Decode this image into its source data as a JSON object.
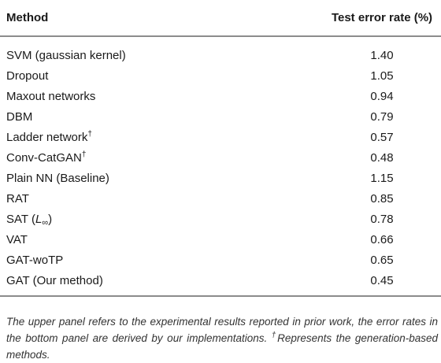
{
  "table": {
    "headers": {
      "method": "Method",
      "error": "Test error rate (%)"
    },
    "rows": [
      {
        "method": "SVM (gaussian kernel)",
        "dagger": "",
        "error": "1.40"
      },
      {
        "method": "Dropout",
        "dagger": "",
        "error": "1.05"
      },
      {
        "method": "Maxout networks",
        "dagger": "",
        "error": "0.94"
      },
      {
        "method": "DBM",
        "dagger": "",
        "error": "0.79"
      },
      {
        "method": "Ladder network",
        "dagger": "†",
        "error": "0.57"
      },
      {
        "method": "Conv-CatGAN",
        "dagger": "†",
        "error": "0.48"
      },
      {
        "method": "Plain NN (Baseline)",
        "dagger": "",
        "error": "1.15"
      },
      {
        "method": "RAT",
        "dagger": "",
        "error": "0.85"
      },
      {
        "method": "SAT (L∞)",
        "dagger": "",
        "error": "0.78"
      },
      {
        "method": "VAT",
        "dagger": "",
        "error": "0.66"
      },
      {
        "method": "GAT-woTP",
        "dagger": "",
        "error": "0.65"
      },
      {
        "method": "GAT (Our method)",
        "dagger": "",
        "error": "0.45"
      }
    ]
  },
  "footnote": {
    "main": "The upper panel refers to the experimental results reported in prior work, the error rates in the bottom panel are derived by our implementations. ",
    "dagger": "†",
    "dagger_text": "Represents the generation-based methods."
  }
}
